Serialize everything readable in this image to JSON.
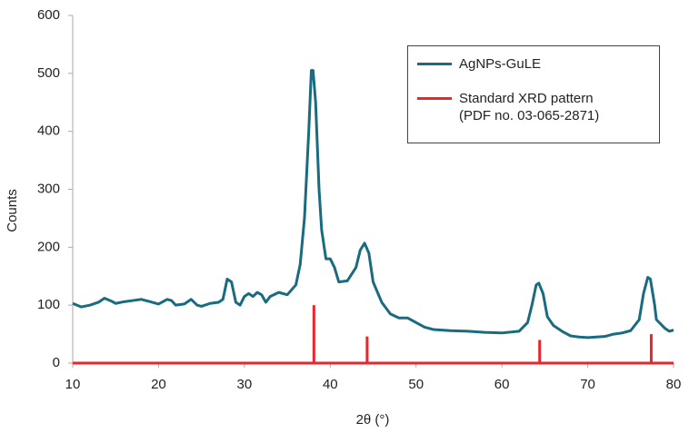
{
  "chart_data": {
    "type": "line",
    "xlabel": "2θ (°)",
    "ylabel": "Counts",
    "xlim": [
      10,
      80
    ],
    "xticks": [
      10,
      20,
      30,
      40,
      50,
      60,
      70,
      80
    ],
    "ylim": [
      0,
      600
    ],
    "yticks": [
      0,
      100,
      200,
      300,
      400,
      500,
      600
    ],
    "grid": false,
    "legend": "upper right",
    "series": [
      {
        "name": "AgNPs-GuLE",
        "color": "#1a6b80",
        "x": [
          10,
          11,
          12,
          13,
          13.7,
          14.5,
          15,
          16,
          17,
          18,
          19,
          20,
          21,
          21.5,
          22,
          23,
          23.8,
          24.5,
          25,
          26,
          27,
          27.5,
          28,
          28.5,
          29,
          29.5,
          30,
          30.5,
          31,
          31.5,
          32,
          32.5,
          33,
          34,
          35,
          36,
          36.5,
          37,
          37.5,
          37.8,
          38,
          38.3,
          38.7,
          39,
          39.5,
          40,
          40.5,
          41,
          42,
          43,
          43.5,
          44,
          44.5,
          45,
          46,
          47,
          48,
          49,
          50,
          51,
          52,
          54,
          56,
          58,
          60,
          62,
          63,
          63.5,
          64,
          64.3,
          64.8,
          65.3,
          66,
          67,
          68,
          69,
          70,
          71,
          72,
          73,
          74,
          75,
          76,
          76.5,
          77,
          77.3,
          77.8,
          78,
          79,
          79.5,
          80
        ],
        "values": [
          103,
          97,
          100,
          105,
          112,
          107,
          103,
          106,
          108,
          110,
          106,
          102,
          110,
          108,
          100,
          102,
          110,
          100,
          98,
          103,
          105,
          110,
          145,
          140,
          105,
          100,
          115,
          120,
          115,
          122,
          118,
          105,
          115,
          122,
          118,
          135,
          170,
          250,
          400,
          505,
          505,
          450,
          300,
          230,
          180,
          180,
          165,
          140,
          142,
          165,
          195,
          207,
          190,
          140,
          105,
          85,
          78,
          78,
          70,
          62,
          58,
          56,
          55,
          53,
          52,
          55,
          70,
          100,
          135,
          138,
          120,
          80,
          65,
          55,
          47,
          45,
          44,
          45,
          46,
          50,
          52,
          56,
          75,
          120,
          148,
          145,
          100,
          75,
          60,
          55,
          57
        ]
      },
      {
        "name": "Standard XRD pattern\n(PDF no. 03-065-2871)",
        "color": "#e8262c",
        "type": "stem",
        "x": [
          38.1,
          44.3,
          64.4,
          77.4
        ],
        "values": [
          100,
          46,
          40,
          50
        ]
      }
    ]
  }
}
